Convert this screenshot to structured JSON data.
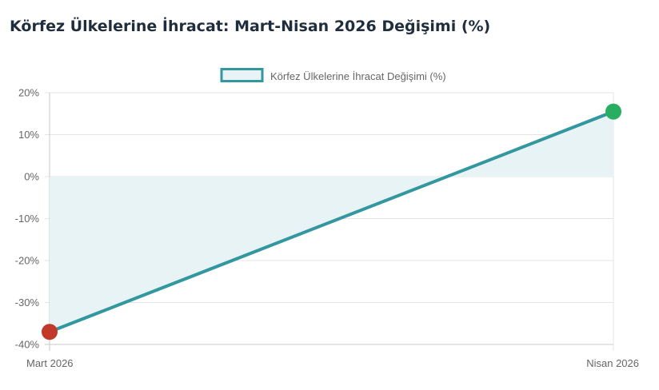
{
  "page": {
    "title": "Körfez Ülkelerine İhracat: Mart-Nisan 2026 Değişimi (%)"
  },
  "chart_data": {
    "type": "line",
    "title": "Körfez Ülkelerine İhracat: Mart-Nisan 2026 Değişimi (%)",
    "categories": [
      "Mart 2026",
      "Nisan 2026"
    ],
    "series": [
      {
        "name": "Körfez Ülkelerine İhracat Değişimi (%)",
        "values": [
          -37.0,
          15.5
        ],
        "color": "#3397a0",
        "fill": "#e8f3f5",
        "fill_to_zero": true
      }
    ],
    "point_colors": [
      "#c0392b",
      "#27ae60"
    ],
    "yticks": [
      "20%",
      "10%",
      "0%",
      "-10%",
      "-20%",
      "-30%",
      "-40%"
    ],
    "ylim": [
      -40,
      20
    ],
    "ytick_step": 10,
    "y_unit": "%",
    "grid": true,
    "legend_position": "top-center",
    "xlabel": "",
    "ylabel": ""
  }
}
